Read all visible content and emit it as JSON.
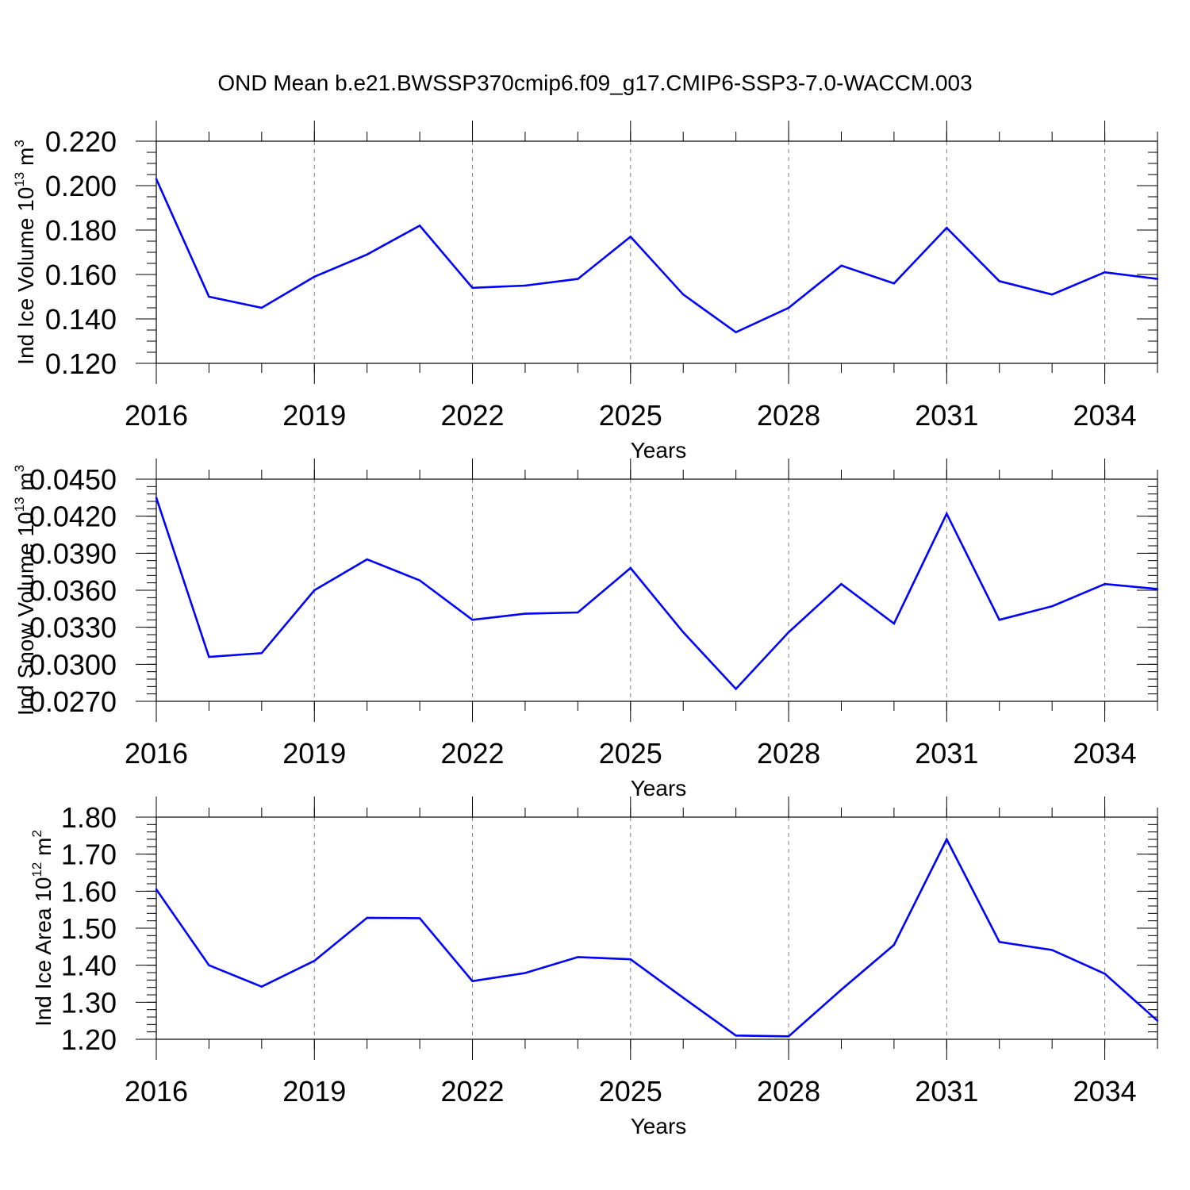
{
  "title": "OND Mean b.e21.BWSSP370cmip6.f09_g17.CMIP6-SSP3-7.0-WACCM.003",
  "colors": {
    "line": "#0000ff",
    "axis": "#000000",
    "grid": "#808080"
  },
  "chart_data": [
    {
      "type": "line",
      "xlabel": "Years",
      "ylabel": {
        "prefix": "Ind Ice Volume 10",
        "exponent": "13",
        "mid": " m",
        "unit_exp": "3"
      },
      "xlim": [
        2016,
        2035
      ],
      "ylim": [
        0.12,
        0.22
      ],
      "x_ticks": [
        "2016",
        "2019",
        "2022",
        "2025",
        "2028",
        "2031",
        "2034"
      ],
      "y_ticks": [
        "0.120",
        "0.140",
        "0.160",
        "0.180",
        "0.200",
        "0.220"
      ],
      "y_minor_step": 0.005,
      "grid": "vertical-dashed",
      "x": [
        2016,
        2017,
        2018,
        2019,
        2020,
        2021,
        2022,
        2023,
        2024,
        2025,
        2026,
        2027,
        2028,
        2029,
        2030,
        2031,
        2032,
        2033,
        2034,
        2035
      ],
      "values": [
        0.203,
        0.15,
        0.145,
        0.159,
        0.169,
        0.182,
        0.154,
        0.155,
        0.158,
        0.177,
        0.151,
        0.134,
        0.145,
        0.164,
        0.156,
        0.181,
        0.157,
        0.151,
        0.161,
        0.158
      ]
    },
    {
      "type": "line",
      "xlabel": "Years",
      "ylabel": {
        "prefix": "Ind Snow Volume 10",
        "exponent": "13",
        "mid": " m",
        "unit_exp": "3"
      },
      "xlim": [
        2016,
        2035
      ],
      "ylim": [
        0.027,
        0.045
      ],
      "x_ticks": [
        "2016",
        "2019",
        "2022",
        "2025",
        "2028",
        "2031",
        "2034"
      ],
      "y_ticks": [
        "0.0270",
        "0.0300",
        "0.0330",
        "0.0360",
        "0.0390",
        "0.0420",
        "0.0450"
      ],
      "y_minor_step": 0.0006,
      "grid": "vertical-dashed",
      "x": [
        2016,
        2017,
        2018,
        2019,
        2020,
        2021,
        2022,
        2023,
        2024,
        2025,
        2026,
        2027,
        2028,
        2029,
        2030,
        2031,
        2032,
        2033,
        2034,
        2035
      ],
      "values": [
        0.0435,
        0.0306,
        0.0309,
        0.036,
        0.0385,
        0.0368,
        0.0336,
        0.0341,
        0.0342,
        0.0378,
        0.0326,
        0.028,
        0.0326,
        0.0365,
        0.0333,
        0.0422,
        0.0336,
        0.0347,
        0.0365,
        0.0361
      ]
    },
    {
      "type": "line",
      "xlabel": "Years",
      "ylabel": {
        "prefix": "Ind Ice Area 10",
        "exponent": "12",
        "mid": " m",
        "unit_exp": "2"
      },
      "xlim": [
        2016,
        2035
      ],
      "ylim": [
        1.2,
        1.8
      ],
      "x_ticks": [
        "2016",
        "2019",
        "2022",
        "2025",
        "2028",
        "2031",
        "2034"
      ],
      "y_ticks": [
        "1.20",
        "1.30",
        "1.40",
        "1.50",
        "1.60",
        "1.70",
        "1.80"
      ],
      "y_minor_step": 0.02,
      "grid": "vertical-dashed",
      "x": [
        2016,
        2017,
        2018,
        2019,
        2020,
        2021,
        2022,
        2023,
        2024,
        2025,
        2026,
        2027,
        2028,
        2029,
        2030,
        2031,
        2032,
        2033,
        2034,
        2035
      ],
      "values": [
        1.605,
        1.4,
        1.342,
        1.412,
        1.528,
        1.527,
        1.357,
        1.379,
        1.422,
        1.416,
        1.312,
        1.21,
        1.208,
        1.334,
        1.455,
        1.74,
        1.463,
        1.441,
        1.377,
        1.25
      ]
    }
  ]
}
